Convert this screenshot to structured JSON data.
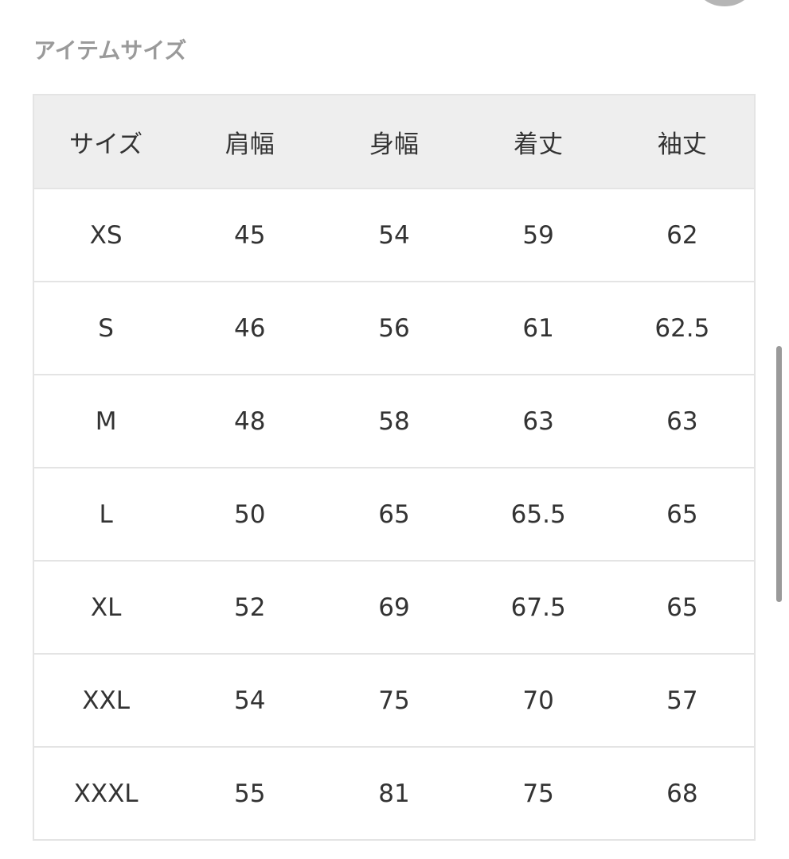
{
  "title": "アイテムサイズ",
  "table": {
    "headers": [
      "サイズ",
      "肩幅",
      "身幅",
      "着丈",
      "袖丈"
    ],
    "rows": [
      [
        "XS",
        "45",
        "54",
        "59",
        "62"
      ],
      [
        "S",
        "46",
        "56",
        "61",
        "62.5"
      ],
      [
        "M",
        "48",
        "58",
        "63",
        "63"
      ],
      [
        "L",
        "50",
        "65",
        "65.5",
        "65"
      ],
      [
        "XL",
        "52",
        "69",
        "67.5",
        "65"
      ],
      [
        "XXL",
        "54",
        "75",
        "70",
        "57"
      ],
      [
        "XXXL",
        "55",
        "81",
        "75",
        "68"
      ]
    ]
  }
}
